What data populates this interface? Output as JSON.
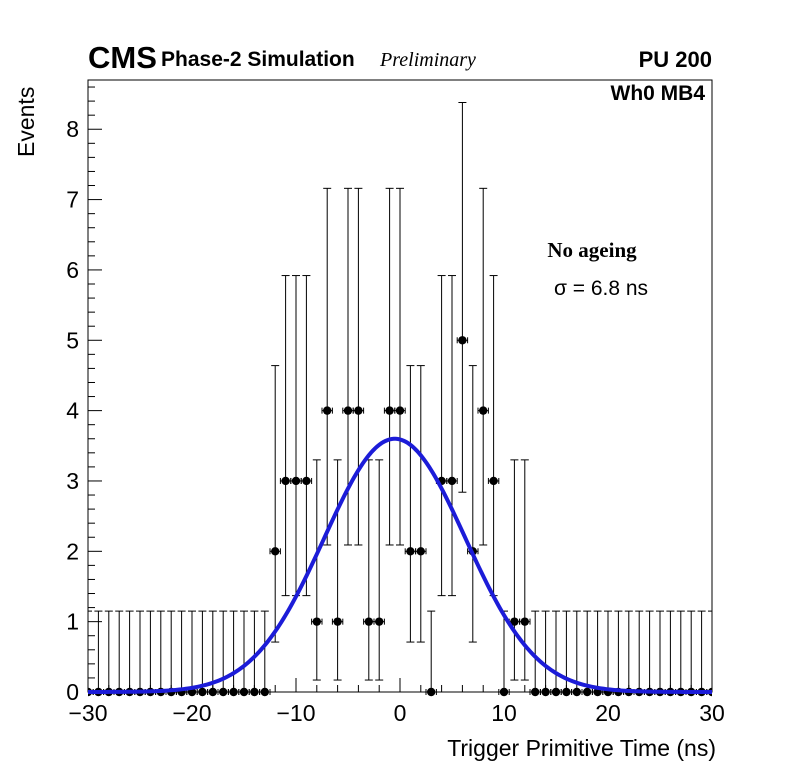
{
  "header": {
    "experiment": "CMS",
    "context": "Phase-2 Simulation",
    "status": "Preliminary",
    "pileup": "PU 200"
  },
  "plot_labels": {
    "chamber": "Wh0 MB4",
    "annotation_title": "No ageing",
    "annotation_sigma": "σ = 6.8 ns"
  },
  "chart_data": {
    "type": "scatter",
    "subtype": "histogram-with-poisson-errors-and-gaussian-fit",
    "title": "",
    "xlabel": "Trigger Primitive Time (ns)",
    "ylabel": "Events",
    "xlim": [
      -30,
      30
    ],
    "ylim": [
      0,
      8.7
    ],
    "grid": false,
    "legend_position": "none",
    "bin_width_ns": 1,
    "x_ticks_major": [
      -30,
      -20,
      -10,
      0,
      10,
      20,
      30
    ],
    "x_tick_labels": [
      "−30",
      "−20",
      "−10",
      "0",
      "10",
      "20",
      "30"
    ],
    "x_minor_step": 2,
    "y_ticks_major": [
      0,
      1,
      2,
      3,
      4,
      5,
      6,
      7,
      8
    ],
    "y_tick_labels": [
      "0",
      "1",
      "2",
      "3",
      "4",
      "5",
      "6",
      "7",
      "8"
    ],
    "y_minor_step": 0.2,
    "x": [
      -30,
      -29,
      -28,
      -27,
      -26,
      -25,
      -24,
      -23,
      -22,
      -21,
      -20,
      -19,
      -18,
      -17,
      -16,
      -15,
      -14,
      -13,
      -12,
      -11,
      -10,
      -9,
      -8,
      -7,
      -6,
      -5,
      -4,
      -3,
      -2,
      -1,
      0,
      1,
      2,
      3,
      4,
      5,
      6,
      7,
      8,
      9,
      10,
      11,
      12,
      13,
      14,
      15,
      16,
      17,
      18,
      19,
      20,
      21,
      22,
      23,
      24,
      25,
      26,
      27,
      28,
      29,
      30
    ],
    "y": [
      0,
      0,
      0,
      0,
      0,
      0,
      0,
      0,
      0,
      0,
      0,
      0,
      0,
      0,
      0,
      0,
      0,
      0,
      2,
      3,
      3,
      3,
      1,
      4,
      1,
      4,
      4,
      1,
      1,
      4,
      4,
      2,
      2,
      0,
      3,
      3,
      5,
      2,
      4,
      3,
      0,
      1,
      1,
      0,
      0,
      0,
      0,
      0,
      0,
      0,
      0,
      0,
      0,
      0,
      0,
      0,
      0,
      0,
      0,
      0,
      0
    ],
    "poisson_errors": {
      "0": {
        "down": 0,
        "up": 1.15
      },
      "1": {
        "down": 0.83,
        "up": 2.3
      },
      "2": {
        "down": 1.29,
        "up": 2.64
      },
      "3": {
        "down": 1.63,
        "up": 2.92
      },
      "4": {
        "down": 1.91,
        "up": 3.16
      },
      "5": {
        "down": 2.16,
        "up": 3.38
      }
    },
    "x_error_half_width": 0.5,
    "fit": {
      "shape": "gaussian",
      "amplitude": 3.6,
      "mean": -0.5,
      "sigma_ns": 6.8,
      "color": "#1c1cd8"
    },
    "marker_color": "#000000",
    "error_bar_color": "#000000",
    "frame_color": "#000000"
  }
}
